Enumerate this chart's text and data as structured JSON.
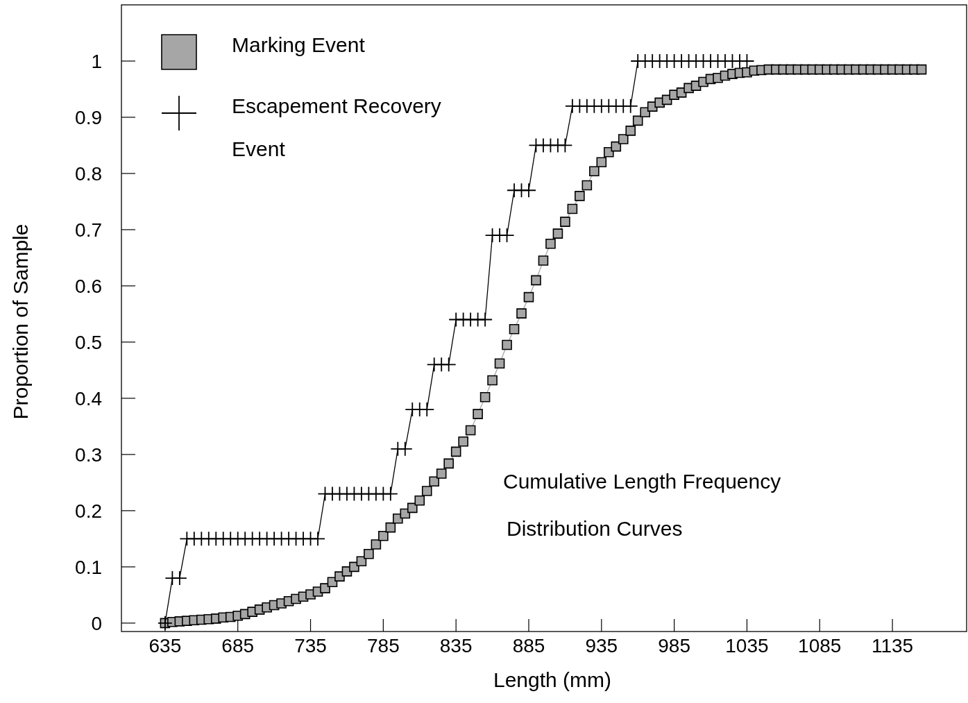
{
  "chart_data": {
    "type": "line",
    "xlabel": "Length (mm)",
    "ylabel": "Proportion of Sample",
    "xlim": [
      605,
      1186
    ],
    "ylim": [
      -0.015,
      1.1
    ],
    "xticks": [
      635,
      685,
      735,
      785,
      835,
      885,
      935,
      985,
      1035,
      1085,
      1135
    ],
    "yticks": [
      0,
      0.1,
      0.2,
      0.3,
      0.4,
      0.5,
      0.6,
      0.7,
      0.8,
      0.9,
      1
    ],
    "grid": false,
    "legend": "top left",
    "line_style": "solid",
    "annotations": [
      "Cumulative Length Frequency",
      "Distribution Curves"
    ],
    "series": [
      {
        "name": "Marking Event",
        "color": "#a6a6a6",
        "marker": "square",
        "x": [
          635,
          640,
          645,
          650,
          655,
          660,
          665,
          670,
          675,
          680,
          685,
          690,
          695,
          700,
          705,
          710,
          715,
          720,
          725,
          730,
          735,
          740,
          745,
          750,
          755,
          760,
          765,
          770,
          775,
          780,
          785,
          790,
          795,
          800,
          805,
          810,
          815,
          820,
          825,
          830,
          835,
          840,
          845,
          850,
          855,
          860,
          865,
          870,
          875,
          880,
          885,
          890,
          895,
          900,
          905,
          910,
          915,
          920,
          925,
          930,
          935,
          940,
          945,
          950,
          955,
          960,
          965,
          970,
          975,
          980,
          985,
          990,
          995,
          1000,
          1005,
          1010,
          1015,
          1020,
          1025,
          1030,
          1035,
          1040,
          1045,
          1050,
          1055,
          1060,
          1065,
          1070,
          1075,
          1080,
          1085,
          1090,
          1095,
          1100,
          1105,
          1110,
          1115,
          1120,
          1125,
          1130,
          1135,
          1140,
          1145,
          1150,
          1155
        ],
        "values": [
          0,
          0.002,
          0.003,
          0.004,
          0.005,
          0.006,
          0.007,
          0.008,
          0.01,
          0.011,
          0.013,
          0.016,
          0.02,
          0.024,
          0.028,
          0.032,
          0.035,
          0.039,
          0.043,
          0.047,
          0.051,
          0.056,
          0.062,
          0.073,
          0.083,
          0.092,
          0.1,
          0.11,
          0.123,
          0.14,
          0.155,
          0.17,
          0.186,
          0.195,
          0.205,
          0.218,
          0.235,
          0.252,
          0.266,
          0.284,
          0.305,
          0.323,
          0.343,
          0.372,
          0.402,
          0.432,
          0.462,
          0.495,
          0.523,
          0.551,
          0.58,
          0.61,
          0.645,
          0.675,
          0.693,
          0.714,
          0.737,
          0.76,
          0.779,
          0.804,
          0.82,
          0.838,
          0.848,
          0.861,
          0.876,
          0.894,
          0.909,
          0.919,
          0.926,
          0.931,
          0.94,
          0.944,
          0.952,
          0.956,
          0.963,
          0.968,
          0.97,
          0.974,
          0.977,
          0.979,
          0.98,
          0.983,
          0.984,
          0.985,
          0.985,
          0.985,
          0.985,
          0.985,
          0.985,
          0.985,
          0.985,
          0.985,
          0.985,
          0.985,
          0.985,
          0.985,
          0.985,
          0.985,
          0.985,
          0.985,
          0.985,
          0.985,
          0.985,
          0.985,
          0.985
        ]
      },
      {
        "name": "Escapement Recovery Event",
        "color": "#000000",
        "marker": "cross",
        "x": [
          635,
          640,
          645,
          650,
          655,
          660,
          665,
          670,
          675,
          680,
          685,
          690,
          695,
          700,
          705,
          710,
          715,
          720,
          725,
          730,
          735,
          740,
          745,
          750,
          755,
          760,
          765,
          770,
          775,
          780,
          785,
          790,
          795,
          800,
          805,
          810,
          815,
          820,
          825,
          830,
          835,
          840,
          845,
          850,
          855,
          860,
          865,
          870,
          875,
          880,
          885,
          890,
          895,
          900,
          905,
          910,
          915,
          920,
          925,
          930,
          935,
          940,
          945,
          950,
          955,
          960,
          965,
          970,
          975,
          980,
          985,
          990,
          995,
          1000,
          1005,
          1010,
          1015,
          1020,
          1025,
          1030,
          1035
        ],
        "values": [
          0,
          0.08,
          0.08,
          0.15,
          0.15,
          0.15,
          0.15,
          0.15,
          0.15,
          0.15,
          0.15,
          0.15,
          0.15,
          0.15,
          0.15,
          0.15,
          0.15,
          0.15,
          0.15,
          0.15,
          0.15,
          0.15,
          0.23,
          0.23,
          0.23,
          0.23,
          0.23,
          0.23,
          0.23,
          0.23,
          0.23,
          0.23,
          0.31,
          0.31,
          0.38,
          0.38,
          0.38,
          0.46,
          0.46,
          0.46,
          0.54,
          0.54,
          0.54,
          0.54,
          0.54,
          0.69,
          0.69,
          0.69,
          0.77,
          0.77,
          0.77,
          0.85,
          0.85,
          0.85,
          0.85,
          0.85,
          0.92,
          0.92,
          0.92,
          0.92,
          0.92,
          0.92,
          0.92,
          0.92,
          0.92,
          1,
          1,
          1,
          1,
          1,
          1,
          1,
          1,
          1,
          1,
          1,
          1,
          1,
          1,
          1,
          1
        ]
      }
    ]
  }
}
